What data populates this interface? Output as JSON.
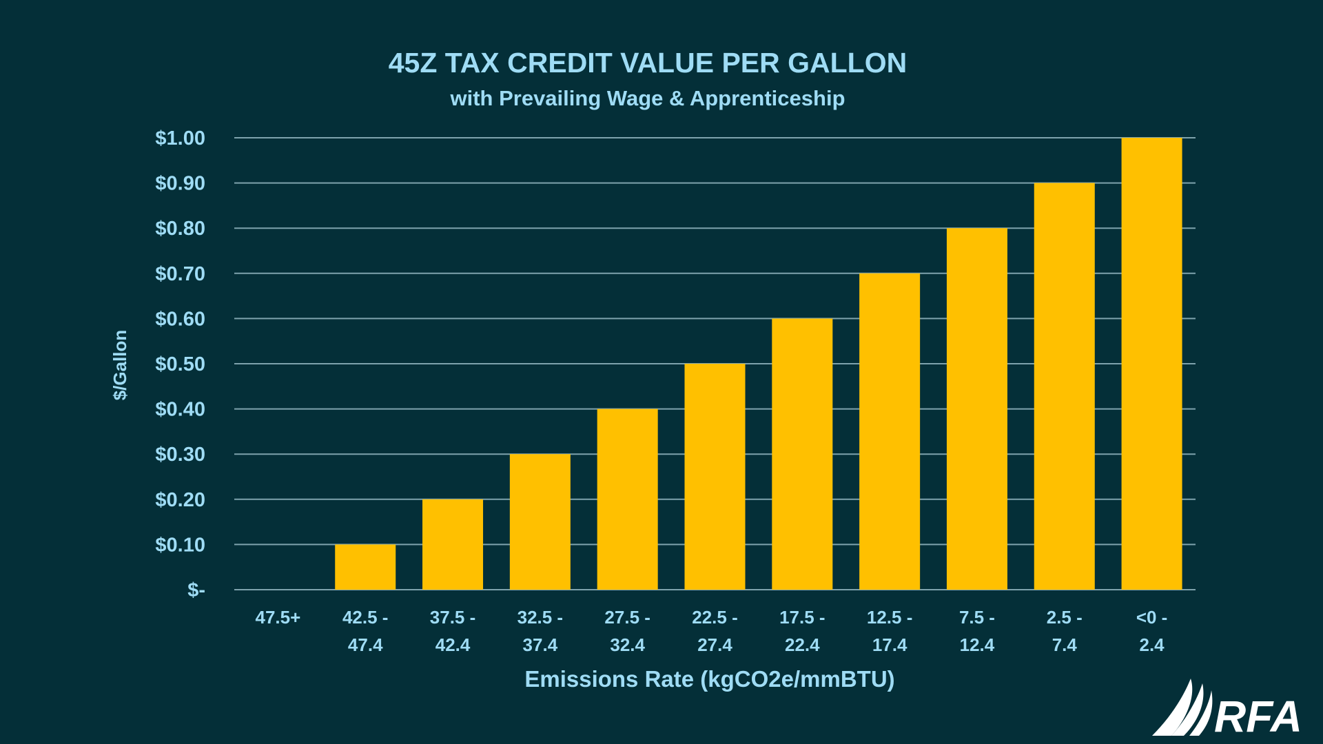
{
  "chart_data": {
    "type": "bar",
    "title": "45Z TAX CREDIT VALUE PER GALLON",
    "subtitle": "with Prevailing Wage & Apprenticeship",
    "xlabel": "Emissions Rate (kgCO2e/mmBTU)",
    "ylabel": "$/Gallon",
    "ylim": [
      0,
      1.0
    ],
    "yticks": [
      0,
      0.1,
      0.2,
      0.3,
      0.4,
      0.5,
      0.6,
      0.7,
      0.8,
      0.9,
      1.0
    ],
    "ytick_labels": [
      "$-",
      "$0.10",
      "$0.20",
      "$0.30",
      "$0.40",
      "$0.50",
      "$0.60",
      "$0.70",
      "$0.80",
      "$0.90",
      "$1.00"
    ],
    "categories": [
      [
        "47.5+"
      ],
      [
        "42.5 -",
        "47.4"
      ],
      [
        "37.5 -",
        "42.4"
      ],
      [
        "32.5 -",
        "37.4"
      ],
      [
        "27.5 -",
        "32.4"
      ],
      [
        "22.5 -",
        "27.4"
      ],
      [
        "17.5 -",
        "22.4"
      ],
      [
        "12.5 -",
        "17.4"
      ],
      [
        "7.5 -",
        "12.4"
      ],
      [
        "2.5 -",
        "7.4"
      ],
      [
        "<0 -",
        "2.4"
      ]
    ],
    "values": [
      0,
      0.1,
      0.2,
      0.3,
      0.4,
      0.5,
      0.6,
      0.7,
      0.8,
      0.9,
      1.0
    ],
    "grid": true,
    "colors": {
      "bar": "#ffc000",
      "grid": "#7fa3ad",
      "text": "#9fdcf5",
      "background": "#042f38"
    }
  },
  "logo": {
    "text": "RFA",
    "color": "#ffffff"
  }
}
